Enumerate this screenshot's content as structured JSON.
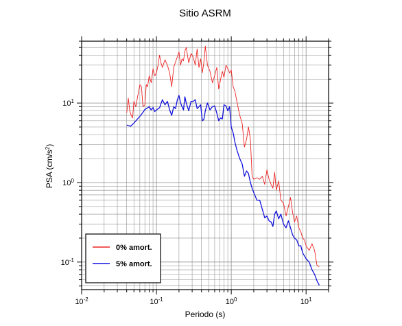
{
  "chart_data": {
    "type": "line",
    "title": "Sitio ASRM",
    "xlabel": "Periodo (s)",
    "ylabel": "PSA (cm/s²)",
    "ylabel_base": "PSA (cm/s",
    "ylabel_sup": "2",
    "ylabel_close": ")",
    "xscale": "log",
    "yscale": "log",
    "xlim": [
      0.01,
      20
    ],
    "ylim": [
      0.045,
      60
    ],
    "grid": true,
    "legend_position": "bottom-left",
    "xticks": [
      {
        "value": 0.01,
        "base": "10",
        "exp": "-2"
      },
      {
        "value": 0.1,
        "base": "10",
        "exp": "-1"
      },
      {
        "value": 1,
        "base": "10",
        "exp": "0"
      },
      {
        "value": 10,
        "base": "10",
        "exp": "1"
      }
    ],
    "yticks": [
      {
        "value": 0.1,
        "base": "10",
        "exp": "-1"
      },
      {
        "value": 1,
        "base": "10",
        "exp": "0"
      },
      {
        "value": 10,
        "base": "10",
        "exp": "1"
      }
    ],
    "series": [
      {
        "name": "0% amort.",
        "color": "#ee2222",
        "x": [
          0.04,
          0.042,
          0.044,
          0.046,
          0.048,
          0.05,
          0.053,
          0.056,
          0.06,
          0.063,
          0.066,
          0.07,
          0.073,
          0.076,
          0.08,
          0.085,
          0.09,
          0.095,
          0.1,
          0.105,
          0.11,
          0.115,
          0.12,
          0.13,
          0.14,
          0.15,
          0.16,
          0.17,
          0.18,
          0.19,
          0.2,
          0.21,
          0.22,
          0.23,
          0.24,
          0.25,
          0.27,
          0.29,
          0.31,
          0.33,
          0.35,
          0.37,
          0.39,
          0.41,
          0.43,
          0.45,
          0.48,
          0.52,
          0.56,
          0.6,
          0.64,
          0.68,
          0.72,
          0.76,
          0.8,
          0.85,
          0.9,
          0.95,
          1.0,
          1.06,
          1.12,
          1.2,
          1.3,
          1.4,
          1.5,
          1.6,
          1.7,
          1.8,
          1.9,
          2.0,
          2.2,
          2.4,
          2.6,
          2.8,
          3.0,
          3.2,
          3.4,
          3.6,
          3.8,
          4.0,
          4.3,
          4.6,
          5.0,
          5.4,
          5.8,
          6.2,
          6.6,
          7.0,
          7.5,
          8.0,
          8.5,
          9.0,
          9.5,
          10.0,
          11.0,
          12.0,
          13.0,
          14.0,
          15.0
        ],
        "y": [
          7.5,
          11.5,
          8.0,
          7.0,
          6.5,
          10.5,
          9.0,
          12.0,
          17.0,
          16.0,
          9.0,
          9.5,
          17.0,
          16.0,
          22.0,
          18.0,
          27.0,
          22.0,
          24.0,
          30.0,
          40.0,
          32.0,
          28.0,
          35.0,
          30.0,
          24.0,
          16.0,
          28.0,
          33.0,
          38.0,
          44.0,
          30.0,
          36.0,
          34.0,
          45.0,
          50.0,
          32.0,
          42.0,
          38.0,
          30.0,
          48.0,
          28.0,
          36.0,
          24.0,
          32.0,
          52.0,
          30.0,
          25.0,
          18.0,
          22.0,
          28.0,
          15.0,
          20.0,
          25.0,
          21.0,
          30.0,
          27.0,
          24.0,
          26.0,
          16.0,
          14.0,
          10.0,
          7.0,
          5.5,
          2.8,
          3.5,
          5.0,
          3.5,
          1.2,
          1.1,
          1.15,
          1.1,
          1.2,
          0.95,
          1.45,
          1.1,
          0.95,
          0.85,
          1.35,
          0.8,
          1.05,
          0.6,
          0.55,
          0.38,
          0.5,
          0.65,
          0.42,
          0.32,
          0.38,
          0.27,
          0.24,
          0.2,
          0.19,
          0.16,
          0.14,
          0.17,
          0.14,
          0.09,
          0.088
        ]
      },
      {
        "name": "5% amort.",
        "color": "#1111dd",
        "x": [
          0.04,
          0.045,
          0.05,
          0.055,
          0.06,
          0.065,
          0.07,
          0.075,
          0.08,
          0.085,
          0.09,
          0.095,
          0.1,
          0.11,
          0.12,
          0.13,
          0.14,
          0.15,
          0.16,
          0.17,
          0.18,
          0.19,
          0.2,
          0.21,
          0.22,
          0.23,
          0.24,
          0.25,
          0.27,
          0.29,
          0.31,
          0.33,
          0.35,
          0.37,
          0.39,
          0.41,
          0.43,
          0.45,
          0.48,
          0.52,
          0.56,
          0.6,
          0.64,
          0.68,
          0.72,
          0.76,
          0.8,
          0.85,
          0.9,
          0.95,
          1.0,
          1.06,
          1.12,
          1.2,
          1.3,
          1.4,
          1.5,
          1.6,
          1.7,
          1.8,
          1.9,
          2.0,
          2.2,
          2.4,
          2.6,
          2.8,
          3.0,
          3.2,
          3.4,
          3.6,
          3.8,
          4.0,
          4.3,
          4.6,
          5.0,
          5.4,
          5.8,
          6.2,
          6.6,
          7.0,
          7.5,
          8.0,
          8.5,
          9.0,
          9.5,
          10.0,
          11.0,
          12.0,
          13.0,
          14.0,
          15.0
        ],
        "y": [
          5.3,
          5.1,
          5.6,
          6.2,
          6.8,
          7.5,
          8.3,
          8.6,
          9.0,
          8.2,
          8.8,
          7.8,
          8.2,
          8.7,
          11.0,
          9.5,
          10.5,
          8.2,
          7.0,
          9.0,
          8.5,
          11.0,
          12.5,
          10.0,
          9.0,
          8.2,
          12.0,
          10.0,
          8.0,
          10.5,
          10.5,
          11.0,
          8.5,
          9.0,
          9.5,
          6.0,
          6.2,
          8.0,
          10.0,
          8.2,
          9.0,
          9.2,
          7.5,
          6.0,
          6.5,
          6.3,
          9.5,
          9.2,
          8.0,
          9.0,
          5.0,
          4.2,
          3.2,
          2.5,
          2.0,
          1.7,
          1.2,
          1.4,
          1.3,
          1.0,
          0.85,
          0.75,
          0.6,
          0.6,
          0.46,
          0.36,
          0.38,
          0.33,
          0.32,
          0.28,
          0.4,
          0.44,
          0.35,
          0.4,
          0.3,
          0.27,
          0.33,
          0.27,
          0.22,
          0.2,
          0.19,
          0.16,
          0.16,
          0.13,
          0.12,
          0.11,
          0.1,
          0.08,
          0.07,
          0.058,
          0.051
        ]
      }
    ]
  }
}
